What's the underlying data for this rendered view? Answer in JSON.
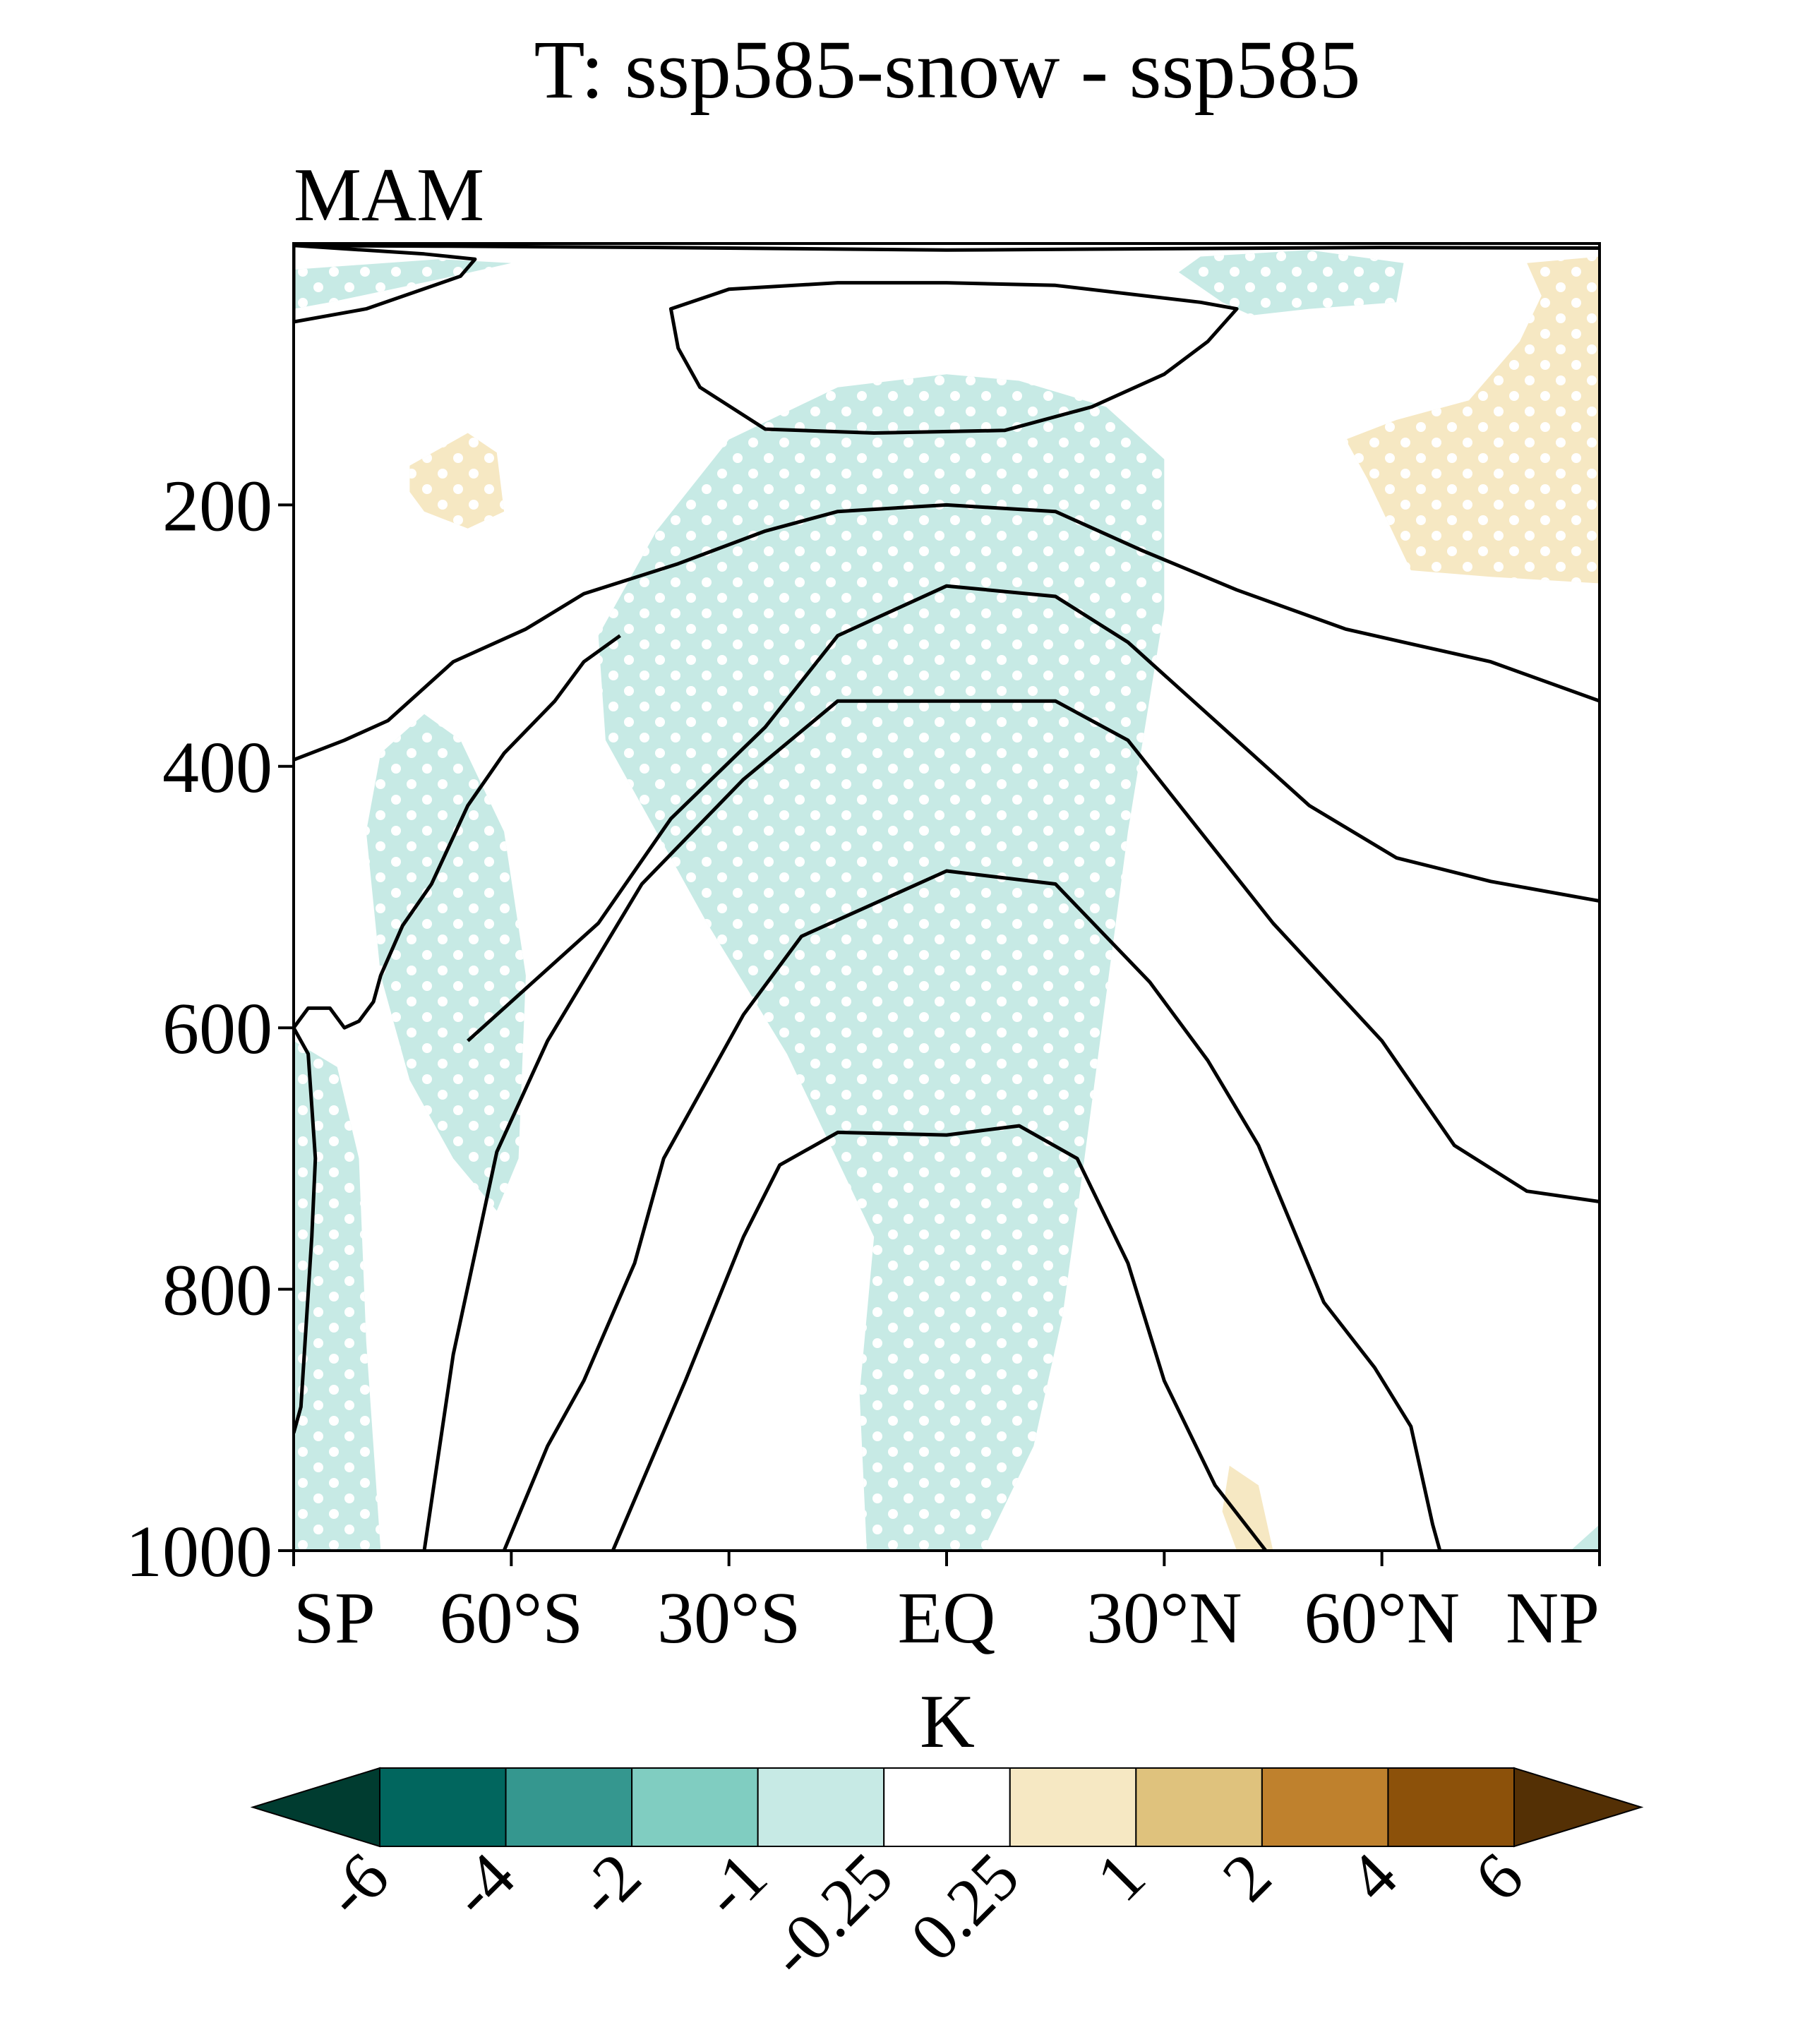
{
  "chart_data": {
    "type": "contour",
    "title": "T: ssp585-snow - ssp585",
    "subtitle": "MAM",
    "xlabel": "",
    "ylabel": "",
    "x_ticks": [
      "SP",
      "60°S",
      "30°S",
      "EQ",
      "30°N",
      "60°N",
      "NP"
    ],
    "x_tick_values": [
      -90,
      -60,
      -30,
      0,
      30,
      60,
      90
    ],
    "y_ticks": [
      "200",
      "400",
      "600",
      "800",
      "1000"
    ],
    "y_tick_values": [
      200,
      400,
      600,
      800,
      1000
    ],
    "xlim": [
      -90,
      90
    ],
    "ylim": [
      1000,
      0
    ],
    "colorbar": {
      "label": "K",
      "levels": [
        "-6",
        "-4",
        "-2",
        "-1",
        "-0.25",
        "0.25",
        "1",
        "2",
        "4",
        "6"
      ],
      "colors": [
        "#003c30",
        "#01665e",
        "#35978f",
        "#80cdc1",
        "#c7eae5",
        "#ffffff",
        "#f6e8c3",
        "#dfc27d",
        "#bf812d",
        "#8c510a",
        "#543005"
      ]
    },
    "shaded_regions": [
      {
        "sign": "negative",
        "range": "-1 to -0.25",
        "color": "#c7eae5",
        "stippled": true,
        "points": [
          [
            -90,
            20
          ],
          [
            -70,
            12
          ],
          [
            -60,
            15
          ],
          [
            -68,
            25
          ],
          [
            -85,
            45
          ],
          [
            -90,
            50
          ]
        ]
      },
      {
        "sign": "negative",
        "range": "-1 to -0.25",
        "color": "#c7eae5",
        "stippled": true,
        "points": [
          [
            35,
            10
          ],
          [
            50,
            5
          ],
          [
            63,
            15
          ],
          [
            62,
            45
          ],
          [
            50,
            50
          ],
          [
            42,
            55
          ],
          [
            38,
            45
          ],
          [
            32,
            22
          ]
        ]
      },
      {
        "sign": "negative",
        "range": "-1 to -0.25",
        "color": "#c7eae5",
        "stippled": true,
        "points": [
          [
            -15,
            110
          ],
          [
            0,
            100
          ],
          [
            10,
            105
          ],
          [
            22,
            125
          ],
          [
            30,
            165
          ],
          [
            30,
            280
          ],
          [
            25,
            450
          ],
          [
            19,
            700
          ],
          [
            16,
            820
          ],
          [
            12,
            920
          ],
          [
            5,
            1000
          ],
          [
            -11,
            1000
          ],
          [
            -12,
            880
          ],
          [
            -10,
            760
          ],
          [
            -22,
            620
          ],
          [
            -33,
            520
          ],
          [
            -47,
            380
          ],
          [
            -48,
            300
          ],
          [
            -40,
            220
          ],
          [
            -30,
            150
          ]
        ]
      },
      {
        "sign": "negative",
        "range": "-1 to -0.25",
        "color": "#c7eae5",
        "stippled": true,
        "points": [
          [
            -72,
            360
          ],
          [
            -67,
            380
          ],
          [
            -61,
            450
          ],
          [
            -58,
            560
          ],
          [
            -59,
            700
          ],
          [
            -62,
            740
          ],
          [
            -68,
            700
          ],
          [
            -74,
            640
          ],
          [
            -78,
            560
          ],
          [
            -80,
            450
          ],
          [
            -78,
            390
          ]
        ]
      },
      {
        "sign": "negative",
        "range": "-1 to -0.25",
        "color": "#c7eae5",
        "stippled": true,
        "points": [
          [
            -90,
            610
          ],
          [
            -84,
            630
          ],
          [
            -81,
            700
          ],
          [
            -80,
            840
          ],
          [
            -78,
            1000
          ],
          [
            -90,
            1000
          ]
        ]
      },
      {
        "sign": "negative",
        "range": "-1 to -0.25",
        "color": "#c7eae5",
        "stippled": false,
        "points": [
          [
            86,
            1000
          ],
          [
            90,
            980
          ],
          [
            90,
            1000
          ]
        ]
      },
      {
        "sign": "positive",
        "range": "0.25 to 1",
        "color": "#f6e8c3",
        "stippled": true,
        "points": [
          [
            -74,
            170
          ],
          [
            -66,
            145
          ],
          [
            -62,
            160
          ],
          [
            -61,
            205
          ],
          [
            -66,
            218
          ],
          [
            -72,
            205
          ],
          [
            -74,
            190
          ]
        ]
      },
      {
        "sign": "positive",
        "range": "0.25 to 1",
        "color": "#f6e8c3",
        "stippled": true,
        "points": [
          [
            80,
            15
          ],
          [
            90,
            10
          ],
          [
            90,
            260
          ],
          [
            75,
            255
          ],
          [
            64,
            250
          ],
          [
            58,
            180
          ],
          [
            55,
            150
          ],
          [
            62,
            135
          ],
          [
            72,
            120
          ],
          [
            79,
            75
          ],
          [
            82,
            40
          ]
        ]
      },
      {
        "sign": "positive",
        "range": "0.25 to 1",
        "color": "#f6e8c3",
        "stippled": false,
        "points": [
          [
            39,
            935
          ],
          [
            43,
            950
          ],
          [
            45,
            1000
          ],
          [
            40,
            1000
          ],
          [
            38,
            970
          ]
        ]
      }
    ],
    "contours": [
      {
        "id": "top-sliver",
        "points": [
          [
            -90,
            1.5
          ],
          [
            -70,
            2
          ],
          [
            -40,
            3
          ],
          [
            0,
            5
          ],
          [
            30,
            4
          ],
          [
            60,
            3
          ],
          [
            90,
            3.5
          ]
        ]
      },
      {
        "id": "sp-upper-loop",
        "closed": true,
        "points": [
          [
            -90,
            1.5
          ],
          [
            -72,
            8
          ],
          [
            -65,
            12
          ],
          [
            -67,
            25
          ],
          [
            -80,
            50
          ],
          [
            -90,
            60
          ]
        ]
      },
      {
        "id": "upper-oval",
        "closed": true,
        "points": [
          [
            -38,
            50
          ],
          [
            -30,
            35
          ],
          [
            -15,
            30
          ],
          [
            0,
            30
          ],
          [
            15,
            32
          ],
          [
            35,
            45
          ],
          [
            40,
            50
          ],
          [
            36,
            75
          ],
          [
            30,
            100
          ],
          [
            20,
            125
          ],
          [
            8,
            143
          ],
          [
            -10,
            145
          ],
          [
            -25,
            142
          ],
          [
            -34,
            110
          ],
          [
            -37,
            80
          ]
        ]
      },
      {
        "id": "c200",
        "points": [
          [
            -90,
            395
          ],
          [
            -83,
            380
          ],
          [
            -77,
            365
          ],
          [
            -68,
            320
          ],
          [
            -58,
            295
          ],
          [
            -50,
            268
          ],
          [
            -37,
            245
          ],
          [
            -25,
            220
          ],
          [
            -15,
            205
          ],
          [
            0,
            200
          ],
          [
            15,
            205
          ],
          [
            27,
            235
          ],
          [
            40,
            265
          ],
          [
            55,
            295
          ],
          [
            63,
            305
          ],
          [
            75,
            320
          ],
          [
            90,
            350
          ]
        ]
      },
      {
        "id": "c260",
        "points": [
          [
            -66,
            610
          ],
          [
            -48,
            520
          ],
          [
            -38,
            440
          ],
          [
            -25,
            370
          ],
          [
            -15,
            300
          ],
          [
            0,
            262
          ],
          [
            15,
            270
          ],
          [
            25,
            305
          ],
          [
            36,
            360
          ],
          [
            50,
            430
          ],
          [
            62,
            470
          ],
          [
            75,
            488
          ],
          [
            90,
            503
          ]
        ]
      },
      {
        "id": "c350",
        "points": [
          [
            -72,
            1000
          ],
          [
            -68,
            850
          ],
          [
            -62,
            695
          ],
          [
            -55,
            610
          ],
          [
            -42,
            490
          ],
          [
            -28,
            410
          ],
          [
            -15,
            350
          ],
          [
            0,
            350
          ],
          [
            15,
            350
          ],
          [
            25,
            380
          ],
          [
            35,
            450
          ],
          [
            45,
            520
          ],
          [
            60,
            610
          ],
          [
            70,
            690
          ],
          [
            80,
            725
          ],
          [
            90,
            733
          ]
        ]
      },
      {
        "id": "c480",
        "points": [
          [
            -61,
            1000
          ],
          [
            -55,
            920
          ],
          [
            -50,
            870
          ],
          [
            -43,
            780
          ],
          [
            -39,
            700
          ],
          [
            -28,
            590
          ],
          [
            -20,
            530
          ],
          [
            0,
            480
          ],
          [
            15,
            490
          ],
          [
            28,
            565
          ],
          [
            36,
            625
          ],
          [
            43,
            690
          ],
          [
            52,
            810
          ],
          [
            59,
            860
          ],
          [
            64,
            905
          ],
          [
            67,
            980
          ],
          [
            68,
            1000
          ]
        ]
      },
      {
        "id": "c680",
        "points": [
          [
            -46,
            1000
          ],
          [
            -36,
            870
          ],
          [
            -28,
            760
          ],
          [
            -23,
            705
          ],
          [
            -15,
            680
          ],
          [
            0,
            682
          ],
          [
            10,
            675
          ],
          [
            18,
            700
          ],
          [
            25,
            780
          ],
          [
            30,
            870
          ],
          [
            37,
            950
          ],
          [
            44,
            1000
          ]
        ]
      },
      {
        "id": "sp-squiggle",
        "points": [
          [
            -90,
            600
          ],
          [
            -88,
            585
          ],
          [
            -85,
            585
          ],
          [
            -83,
            600
          ],
          [
            -81,
            595
          ],
          [
            -79,
            580
          ],
          [
            -78,
            560
          ],
          [
            -75,
            522
          ],
          [
            -71,
            490
          ],
          [
            -66,
            430
          ],
          [
            -61,
            390
          ],
          [
            -54,
            350
          ],
          [
            -50,
            320
          ],
          [
            -45,
            300
          ]
        ]
      },
      {
        "id": "sp-edge",
        "points": [
          [
            -90,
            600
          ],
          [
            -88,
            620
          ],
          [
            -87,
            700
          ],
          [
            -87.5,
            760
          ],
          [
            -89,
            890
          ],
          [
            -90,
            910
          ]
        ]
      }
    ]
  }
}
